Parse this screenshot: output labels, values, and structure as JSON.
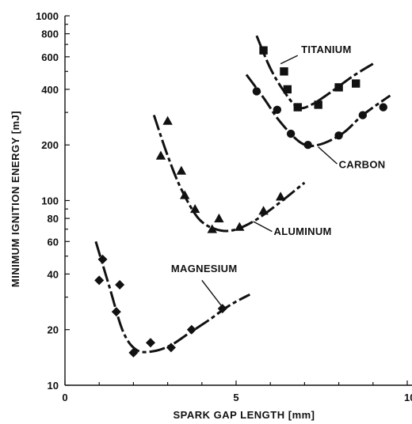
{
  "chart_data": {
    "type": "scatter",
    "title": "",
    "xlabel": "SPARK GAP LENGTH  [mm]",
    "ylabel": "MINIMUM IGNITION ENERGY  [mJ]",
    "xlim": [
      0,
      10
    ],
    "ylim": [
      10,
      1000
    ],
    "yscale": "log",
    "x_ticks": [
      0,
      5,
      10
    ],
    "x_tick_labels": [
      "0",
      "5",
      "10"
    ],
    "y_ticks": [
      10,
      20,
      40,
      60,
      80,
      100,
      200,
      400,
      600,
      800,
      1000
    ],
    "y_tick_labels": [
      "10",
      "20",
      "40",
      "60",
      "80",
      "100",
      "200",
      "400",
      "600",
      "800",
      "1000"
    ],
    "grid": false,
    "series": [
      {
        "name": "TITANIUM",
        "marker": "square",
        "points": [
          [
            5.8,
            650
          ],
          [
            6.4,
            500
          ],
          [
            6.5,
            400
          ],
          [
            6.8,
            320
          ],
          [
            7.4,
            330
          ],
          [
            8.0,
            410
          ],
          [
            8.5,
            430
          ]
        ],
        "curve": [
          [
            5.6,
            780
          ],
          [
            6.0,
            520
          ],
          [
            6.4,
            390
          ],
          [
            6.8,
            320
          ],
          [
            7.2,
            330
          ],
          [
            7.8,
            390
          ],
          [
            8.4,
            470
          ],
          [
            9.0,
            550
          ]
        ]
      },
      {
        "name": "CARBON",
        "marker": "circle",
        "points": [
          [
            5.6,
            390
          ],
          [
            6.2,
            310
          ],
          [
            6.6,
            230
          ],
          [
            7.1,
            200
          ],
          [
            8.0,
            225
          ],
          [
            8.7,
            290
          ],
          [
            9.3,
            320
          ]
        ],
        "curve": [
          [
            5.3,
            480
          ],
          [
            5.8,
            360
          ],
          [
            6.3,
            265
          ],
          [
            6.9,
            205
          ],
          [
            7.4,
            200
          ],
          [
            8.1,
            230
          ],
          [
            8.7,
            290
          ],
          [
            9.5,
            370
          ]
        ]
      },
      {
        "name": "ALUMINUM",
        "marker": "triangle",
        "points": [
          [
            2.8,
            175
          ],
          [
            3.0,
            270
          ],
          [
            3.4,
            145
          ],
          [
            3.5,
            107
          ],
          [
            3.8,
            90
          ],
          [
            4.3,
            70
          ],
          [
            4.5,
            80
          ],
          [
            5.1,
            72
          ],
          [
            5.8,
            88
          ],
          [
            6.3,
            105
          ]
        ],
        "curve": [
          [
            2.6,
            290
          ],
          [
            3.0,
            175
          ],
          [
            3.4,
            115
          ],
          [
            3.9,
            80
          ],
          [
            4.4,
            70
          ],
          [
            4.9,
            69
          ],
          [
            5.5,
            77
          ],
          [
            6.2,
            95
          ],
          [
            7.0,
            125
          ]
        ]
      },
      {
        "name": "MAGNESIUM",
        "marker": "diamond",
        "points": [
          [
            1.0,
            37
          ],
          [
            1.1,
            48
          ],
          [
            1.5,
            25
          ],
          [
            1.6,
            35
          ],
          [
            2.0,
            15
          ],
          [
            2.5,
            17
          ],
          [
            3.1,
            16
          ],
          [
            3.7,
            20
          ],
          [
            4.6,
            26
          ]
        ],
        "curve": [
          [
            0.9,
            60
          ],
          [
            1.3,
            34
          ],
          [
            1.7,
            19.5
          ],
          [
            2.1,
            15.5
          ],
          [
            2.6,
            15.3
          ],
          [
            3.1,
            16.5
          ],
          [
            3.6,
            19
          ],
          [
            4.2,
            22.5
          ],
          [
            4.8,
            27
          ],
          [
            5.4,
            31
          ]
        ]
      }
    ]
  }
}
